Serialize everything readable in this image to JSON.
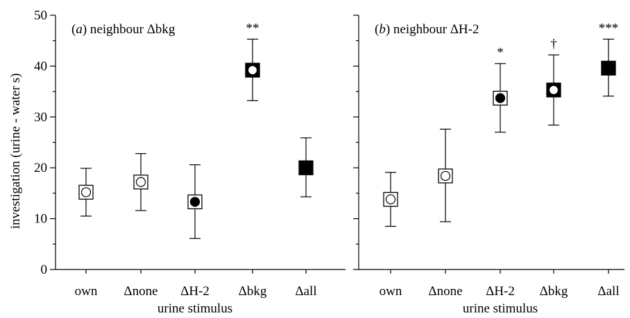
{
  "ylabel": "investigation (urine - water s)",
  "xlabel": "urine stimulus",
  "chart_data": [
    {
      "type": "scatter",
      "panel_label": "(a) neighbour Δbkg",
      "panel_letter": "a",
      "panel_rest": "neighbour Δbkg",
      "categories": [
        "own",
        "Δnone",
        "ΔH-2",
        "Δbkg",
        "Δall"
      ],
      "values": [
        15.2,
        17.2,
        13.3,
        39.2,
        20.0
      ],
      "err_low": [
        10.5,
        11.6,
        6.1,
        33.2,
        14.3
      ],
      "err_high": [
        19.9,
        22.8,
        20.6,
        45.3,
        25.9
      ],
      "marker_square": [
        "white",
        "white",
        "white",
        "black",
        "black"
      ],
      "marker_circle": [
        "white",
        "white",
        "black",
        "white",
        "none"
      ],
      "annotations": [
        "",
        "",
        "",
        "**",
        ""
      ],
      "xlabel": "urine stimulus",
      "ylabel": "investigation (urine - water s)",
      "ylim": [
        0,
        50
      ],
      "yticks": [
        "0",
        "10",
        "20",
        "30",
        "40",
        "50"
      ]
    },
    {
      "type": "scatter",
      "panel_label": "(b) neighbour ΔH-2",
      "panel_letter": "b",
      "panel_rest": "neighbour ΔH-2",
      "categories": [
        "own",
        "Δnone",
        "ΔH-2",
        "Δbkg",
        "Δall"
      ],
      "values": [
        13.8,
        18.4,
        33.7,
        35.3,
        39.6
      ],
      "err_low": [
        8.5,
        9.4,
        27.0,
        28.4,
        34.1
      ],
      "err_high": [
        19.1,
        27.6,
        40.5,
        42.2,
        45.3
      ],
      "marker_square": [
        "white",
        "white",
        "white",
        "black",
        "black"
      ],
      "marker_circle": [
        "white",
        "white",
        "black",
        "white",
        "none"
      ],
      "annotations": [
        "",
        "",
        "*",
        "†",
        "***"
      ],
      "xlabel": "urine stimulus",
      "ylabel": "",
      "ylim": [
        0,
        50
      ],
      "yticks": [
        "0",
        "10",
        "20",
        "30",
        "40",
        "50"
      ]
    }
  ]
}
